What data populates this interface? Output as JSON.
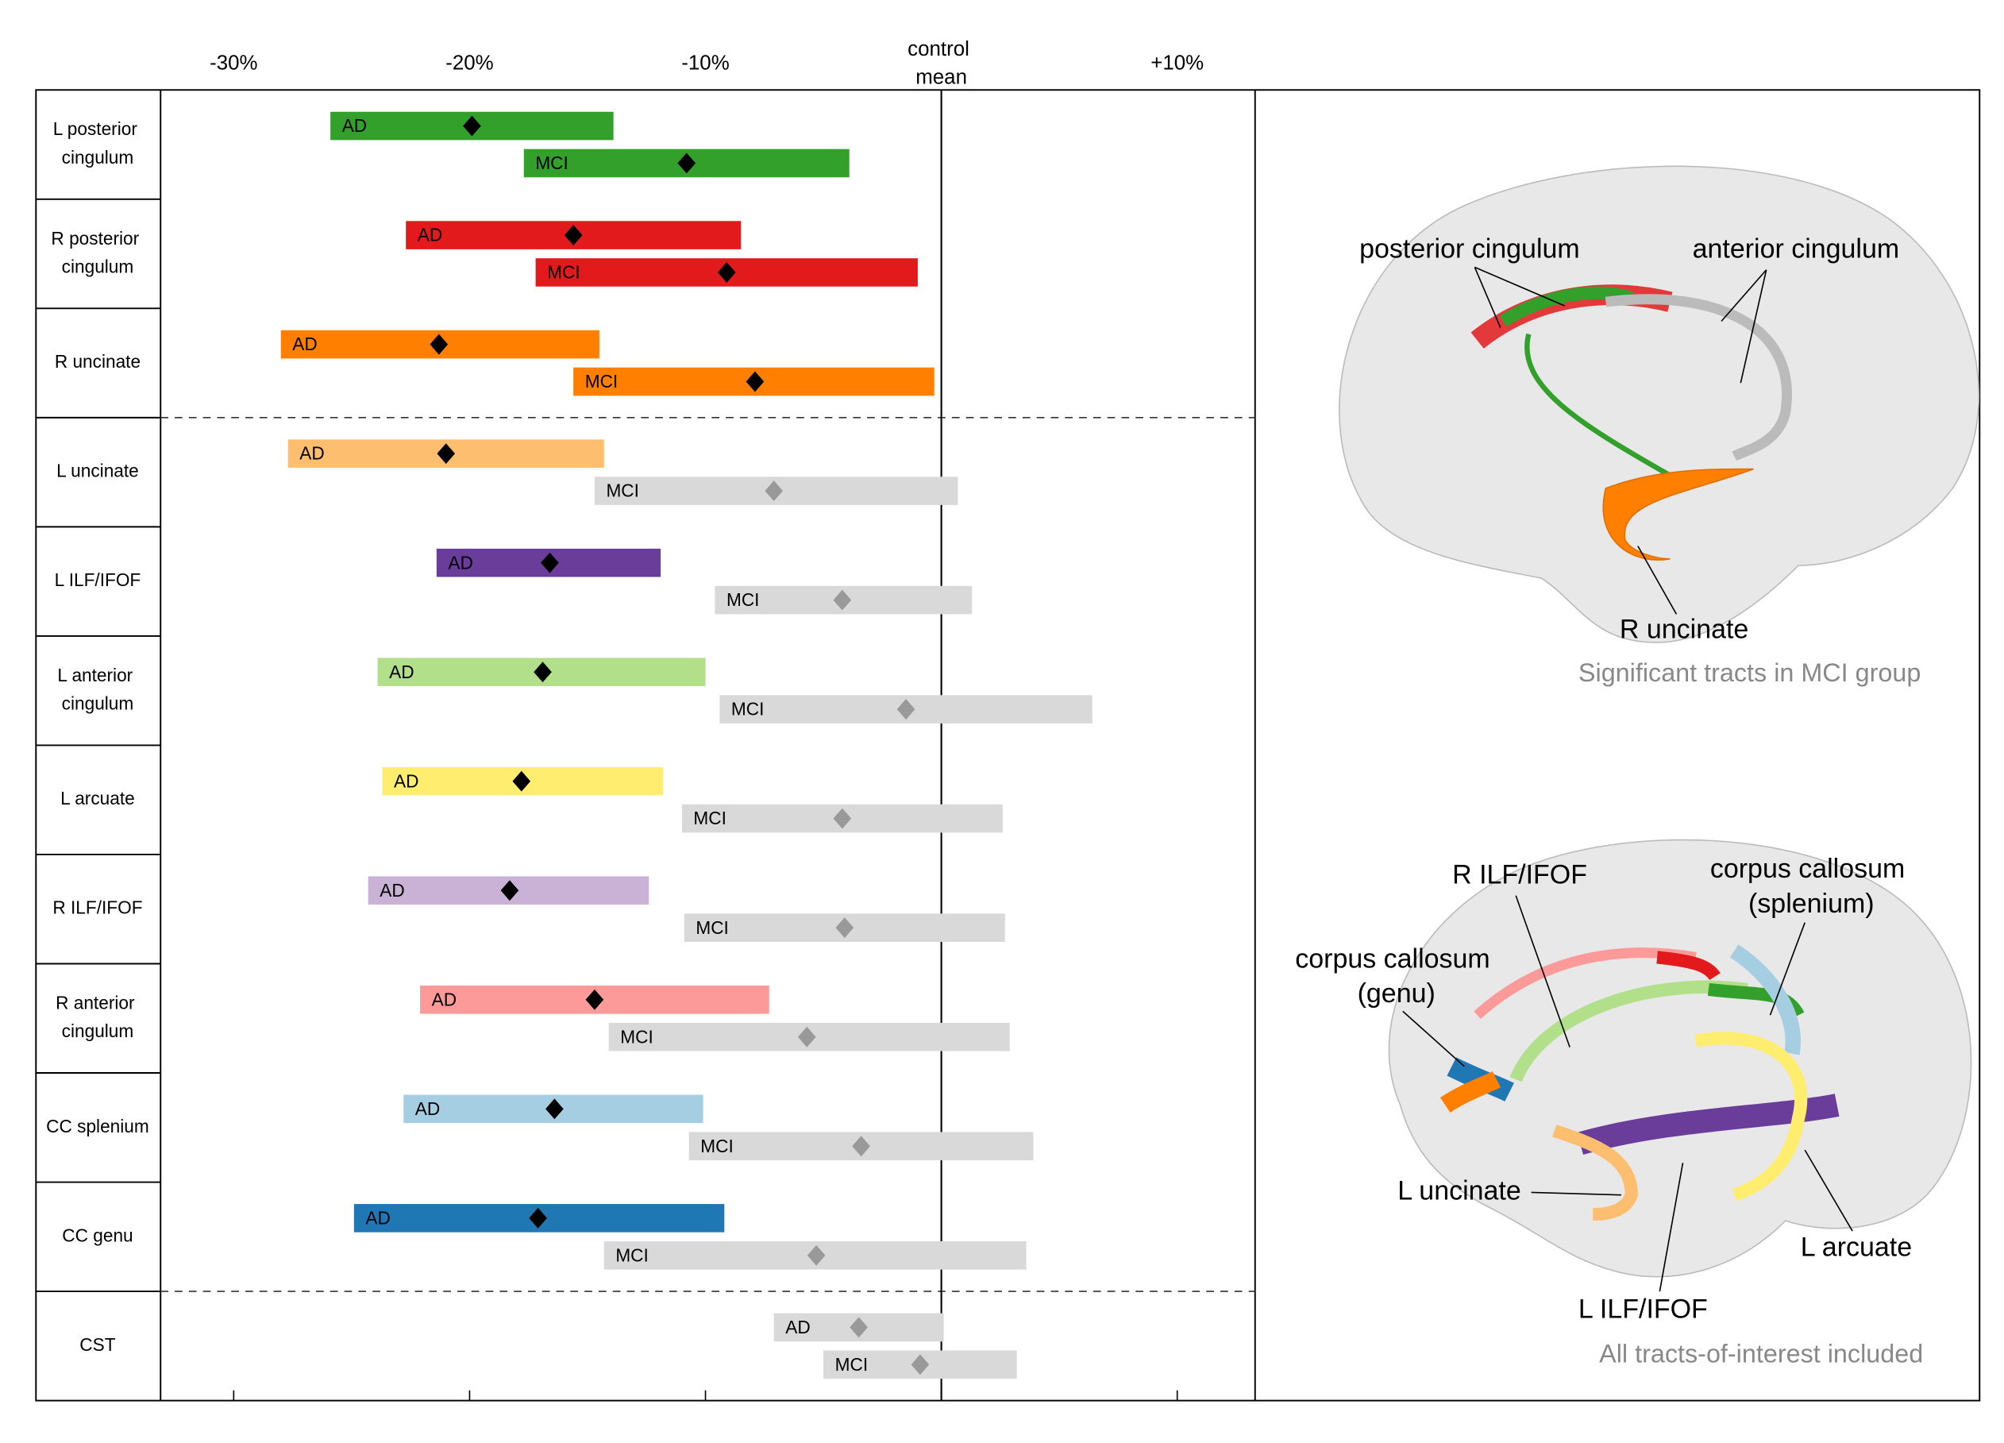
{
  "chart_data": {
    "type": "interval",
    "categories": [
      "L posterior cingulum",
      "R posterior cingulum",
      "R uncinate",
      "L uncinate",
      "L ILF/IFOF",
      "L anterior cingulum",
      "L arcuate",
      "R ILF/IFOF",
      "R anterior cingulum",
      "CC splenium",
      "CC genu",
      "CST"
    ],
    "xlim": [
      -33.1,
      13.3
    ],
    "xticks": [
      {
        "value": -30,
        "label": "-30%"
      },
      {
        "value": -20,
        "label": "-20%"
      },
      {
        "value": -10,
        "label": "-10%"
      },
      {
        "value": 0,
        "label": "control mean"
      },
      {
        "value": 10,
        "label": "+10%"
      }
    ],
    "series": [
      {
        "name": "AD",
        "low": [
          -25.9,
          -22.7,
          -28.0,
          -27.7,
          -21.4,
          -23.9,
          -23.7,
          -24.3,
          -22.1,
          -22.8,
          -24.9,
          -7.1
        ],
        "high": [
          -13.9,
          -8.5,
          -14.5,
          -14.3,
          -11.9,
          -10.0,
          -11.8,
          -12.4,
          -7.3,
          -10.1,
          -9.2,
          0.1
        ],
        "mean": [
          -19.9,
          -15.6,
          -21.3,
          -21.0,
          -16.6,
          -16.9,
          -17.8,
          -18.3,
          -14.7,
          -16.4,
          -17.1,
          -3.5
        ],
        "colors": [
          "#33a02c",
          "#e31a1c",
          "#ff7f00",
          "#fdbf6f",
          "#6a3d9a",
          "#b2df8a",
          "#ffed6f",
          "#cab2d6",
          "#fb9a99",
          "#a6cee3",
          "#1f78b4",
          "#d9d9d9"
        ],
        "marker_colors": [
          "#000000",
          "#000000",
          "#000000",
          "#000000",
          "#000000",
          "#000000",
          "#000000",
          "#000000",
          "#000000",
          "#000000",
          "#000000",
          "#999999"
        ]
      },
      {
        "name": "MCI",
        "low": [
          -17.7,
          -17.2,
          -15.6,
          -14.7,
          -9.6,
          -9.4,
          -11.0,
          -10.9,
          -14.1,
          -10.7,
          -14.3,
          -5.0
        ],
        "high": [
          -3.9,
          -1.0,
          -0.3,
          0.7,
          1.3,
          6.4,
          2.6,
          2.7,
          2.9,
          3.9,
          3.6,
          3.2
        ],
        "mean": [
          -10.8,
          -9.1,
          -7.9,
          -7.1,
          -4.2,
          -1.5,
          -4.2,
          -4.1,
          -5.7,
          -3.4,
          -5.3,
          -0.9
        ],
        "colors": [
          "#33a02c",
          "#e31a1c",
          "#ff7f00",
          "#d9d9d9",
          "#d9d9d9",
          "#d9d9d9",
          "#d9d9d9",
          "#d9d9d9",
          "#d9d9d9",
          "#d9d9d9",
          "#d9d9d9",
          "#d9d9d9"
        ],
        "marker_colors": [
          "#000000",
          "#000000",
          "#000000",
          "#999999",
          "#999999",
          "#999999",
          "#999999",
          "#999999",
          "#999999",
          "#999999",
          "#999999",
          "#999999"
        ]
      }
    ]
  },
  "brain_panels": [
    {
      "labels": [
        "posterior cingulum",
        "anterior cingulum",
        "R uncinate"
      ],
      "caption": "Significant tracts in MCI group"
    },
    {
      "labels": [
        "R ILF/IFOF",
        "corpus callosum (splenium)",
        "corpus callosum (genu)",
        "L uncinate",
        "L arcuate",
        "L ILF/IFOF"
      ],
      "caption": "All tracts-of-interest included"
    }
  ]
}
